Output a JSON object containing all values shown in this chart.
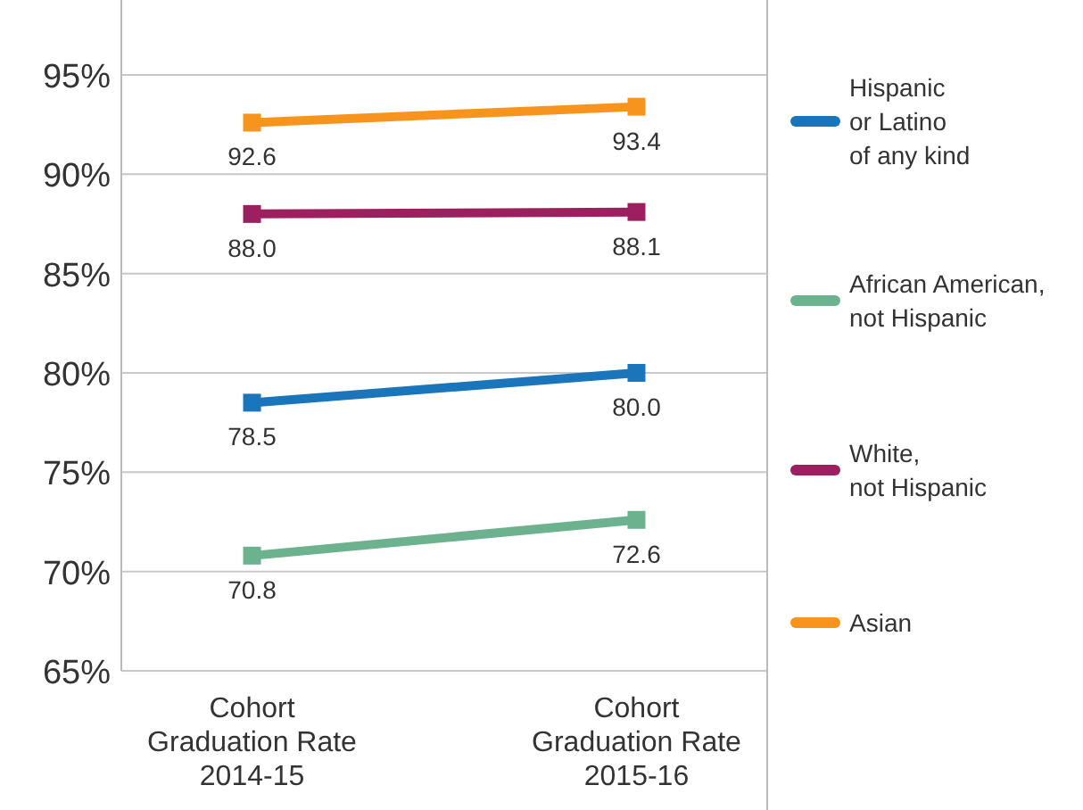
{
  "chart_data": {
    "type": "line",
    "categories": [
      "Cohort\nGraduation Rate\n2014-15",
      "Cohort\nGraduation Rate\n2015-16"
    ],
    "series": [
      {
        "name": "Hispanic\nor Latino\nof any kind",
        "color": "#1b75bb",
        "values": [
          78.5,
          80.0
        ],
        "value_labels": [
          "78.5",
          "80.0"
        ]
      },
      {
        "name": "African American,\nnot Hispanic",
        "color": "#6db28f",
        "values": [
          70.8,
          72.6
        ],
        "value_labels": [
          "70.8",
          "72.6"
        ]
      },
      {
        "name": "White,\nnot Hispanic",
        "color": "#9c1f5f",
        "values": [
          88.0,
          88.1
        ],
        "value_labels": [
          "88.0",
          "88.1"
        ]
      },
      {
        "name": "Asian",
        "color": "#f7941d",
        "values": [
          92.6,
          93.4
        ],
        "value_labels": [
          "92.6",
          "93.4"
        ]
      }
    ],
    "ylim": [
      65,
      95
    ],
    "yticks": [
      {
        "value": 65,
        "label": "65%"
      },
      {
        "value": 70,
        "label": "70%"
      },
      {
        "value": 75,
        "label": "75%"
      },
      {
        "value": 80,
        "label": "80%"
      },
      {
        "value": 85,
        "label": "85%"
      },
      {
        "value": 90,
        "label": "90%"
      },
      {
        "value": 95,
        "label": "95%"
      }
    ],
    "grid": "y",
    "legend": "right",
    "marker": "square",
    "line_style": "solid"
  }
}
